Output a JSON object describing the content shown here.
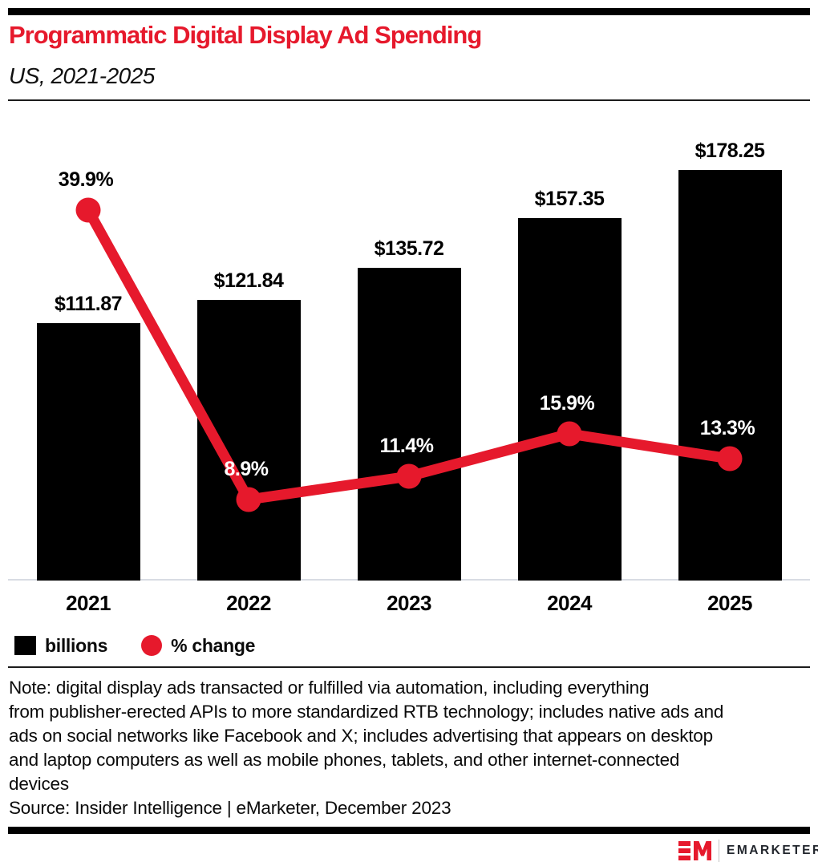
{
  "header": {
    "title": "Programmatic Digital Display Ad Spending",
    "subtitle": "US, 2021-2025"
  },
  "chart_data": {
    "type": "bar",
    "subtype": "bar-with-line-overlay",
    "categories": [
      "2021",
      "2022",
      "2023",
      "2024",
      "2025"
    ],
    "series": [
      {
        "name": "billions",
        "type": "bar",
        "values": [
          111.87,
          121.84,
          135.72,
          157.35,
          178.25
        ],
        "labels": [
          "$111.87",
          "$121.84",
          "$135.72",
          "$157.35",
          "$178.25"
        ],
        "color": "#000000"
      },
      {
        "name": "% change",
        "type": "line",
        "values": [
          39.9,
          8.9,
          11.4,
          15.9,
          13.3
        ],
        "labels": [
          "39.9%",
          "8.9%",
          "11.4%",
          "15.9%",
          "13.3%"
        ],
        "color": "#e6192c"
      }
    ],
    "legend": [
      {
        "label": "billions",
        "marker": "square",
        "color": "#000000"
      },
      {
        "label": "% change",
        "marker": "circle",
        "color": "#e6192c"
      }
    ],
    "grid": false,
    "legend_position": "bottom-left"
  },
  "colors": {
    "accent_red": "#e6192c",
    "bar_black": "#000000",
    "baseline_gray": "#d8dce3"
  },
  "footer": {
    "note_lines": [
      "Note: digital display ads transacted or fulfilled via automation, including everything",
      "from publisher-erected APIs to more standardized RTB technology; includes native ads and",
      "ads on social networks like Facebook and X; includes advertising that appears on desktop",
      "and laptop computers as well as mobile phones, tablets, and other internet-connected",
      "devices"
    ],
    "source": "Source: Insider Intelligence | eMarketer, December 2023",
    "logo": {
      "mark": "EM",
      "text": "EMARKETER"
    }
  }
}
